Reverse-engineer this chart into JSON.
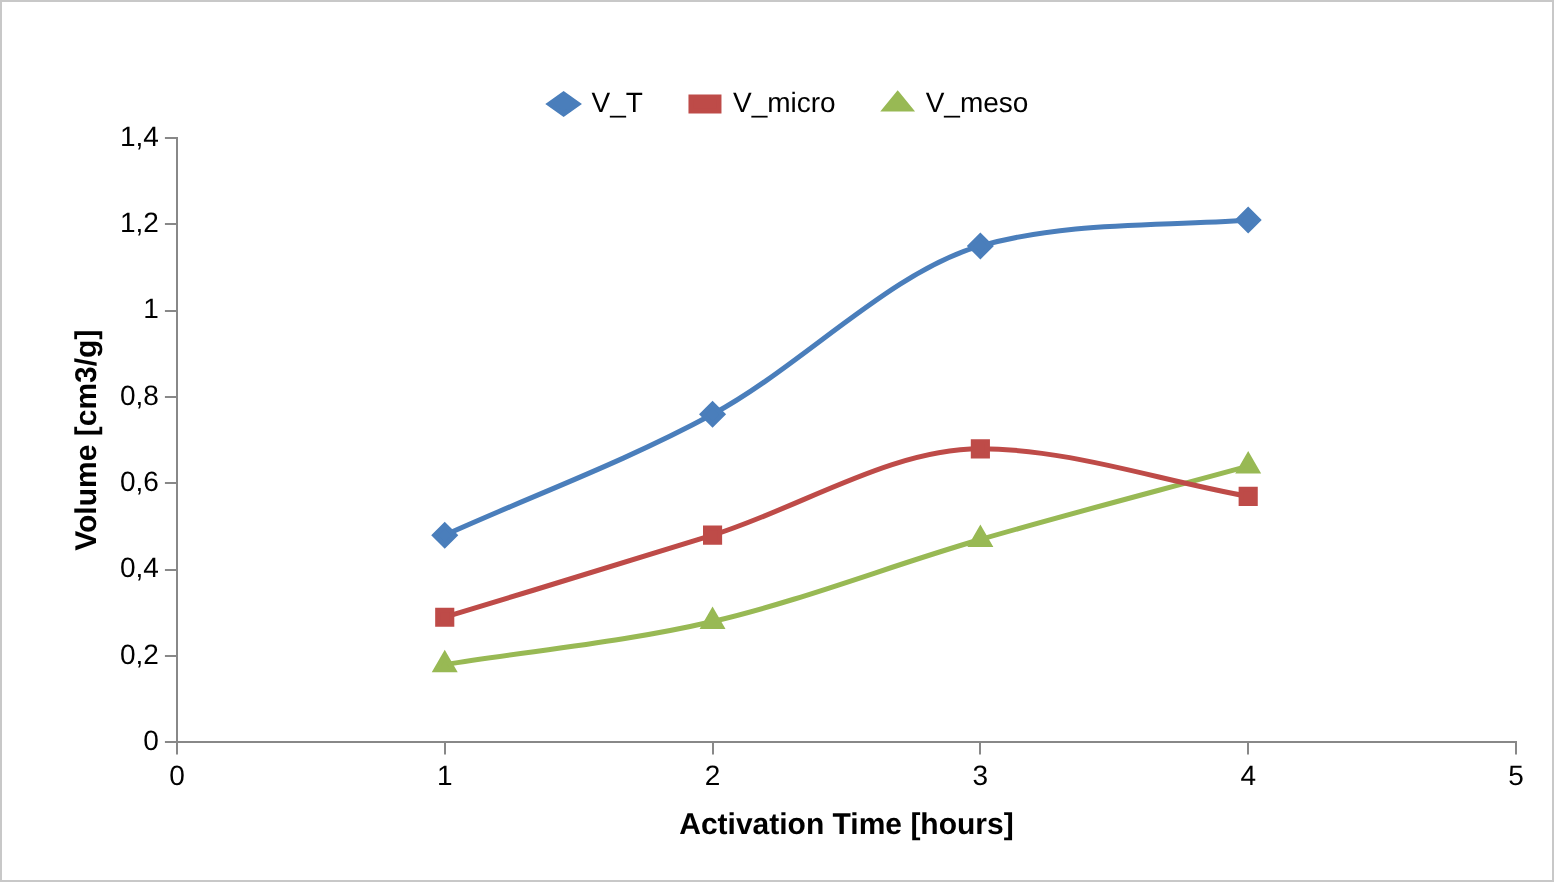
{
  "chart_data": {
    "type": "line",
    "xlabel": "Activation Time [hours]",
    "ylabel": "Volume [cm3/g]",
    "x": [
      1,
      2,
      3,
      4
    ],
    "series": [
      {
        "name": "V_T",
        "color": "#4a7ebb",
        "marker": "diamond",
        "values": [
          0.48,
          0.76,
          1.15,
          1.21
        ]
      },
      {
        "name": "V_micro",
        "color": "#be4b48",
        "marker": "square",
        "values": [
          0.29,
          0.48,
          0.68,
          0.57
        ]
      },
      {
        "name": "V_meso",
        "color": "#98b954",
        "marker": "triangle",
        "values": [
          0.18,
          0.28,
          0.47,
          0.64
        ]
      }
    ],
    "xlim": [
      0,
      5
    ],
    "xticks": [
      0,
      1,
      2,
      3,
      4,
      5
    ],
    "ylim": [
      0,
      1.4
    ],
    "yticks": [
      0,
      {
        "value": 0.2,
        "label": "0,2"
      },
      {
        "value": 0.4,
        "label": "0,4"
      },
      {
        "value": 0.6,
        "label": "0,6"
      },
      {
        "value": 0.8,
        "label": "0,8"
      },
      1,
      {
        "value": 1.2,
        "label": "1,2"
      },
      {
        "value": 1.4,
        "label": "1,4"
      }
    ],
    "grid": false,
    "legend": "top",
    "line_style": "solid"
  }
}
